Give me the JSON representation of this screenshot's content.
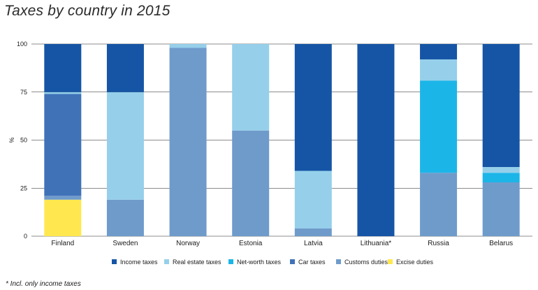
{
  "chart_data": {
    "type": "bar",
    "stacked": true,
    "title": "Taxes by country in 2015",
    "ylabel": "%",
    "xlabel": "",
    "ylim": [
      0,
      100
    ],
    "yticks": [
      0,
      25,
      50,
      75,
      100
    ],
    "grid": "horizontal",
    "legend_position": "bottom",
    "categories": [
      "Finland",
      "Sweden",
      "Norway",
      "Estonia",
      "Latvia",
      "Lithuania*",
      "Russia",
      "Belarus"
    ],
    "series": [
      {
        "name": "Excise duties",
        "color": "#ffe84f",
        "values": [
          19,
          0,
          0,
          0,
          0,
          0,
          0,
          0
        ]
      },
      {
        "name": "Customs duties",
        "color": "#6f9bcb",
        "values": [
          2,
          19,
          98,
          55,
          4,
          0,
          33,
          28
        ]
      },
      {
        "name": "Car taxes",
        "color": "#4072b8",
        "values": [
          53,
          0,
          0,
          0,
          0,
          0,
          0,
          0
        ]
      },
      {
        "name": "Net-worth taxes",
        "color": "#1cb5e8",
        "values": [
          0,
          0,
          0,
          0,
          0,
          0,
          48,
          5
        ]
      },
      {
        "name": "Real estate taxes",
        "color": "#96cfea",
        "values": [
          1,
          56,
          2,
          45,
          30,
          0,
          11,
          3
        ]
      },
      {
        "name": "Income taxes",
        "color": "#1655a5",
        "values": [
          25,
          25,
          0,
          0,
          66,
          100,
          8,
          64
        ]
      }
    ],
    "legend_order": [
      "Income taxes",
      "Real estate taxes",
      "Net-worth taxes",
      "Car taxes",
      "Customs duties",
      "Excise duties"
    ]
  },
  "footnote": "* Incl. only income taxes"
}
